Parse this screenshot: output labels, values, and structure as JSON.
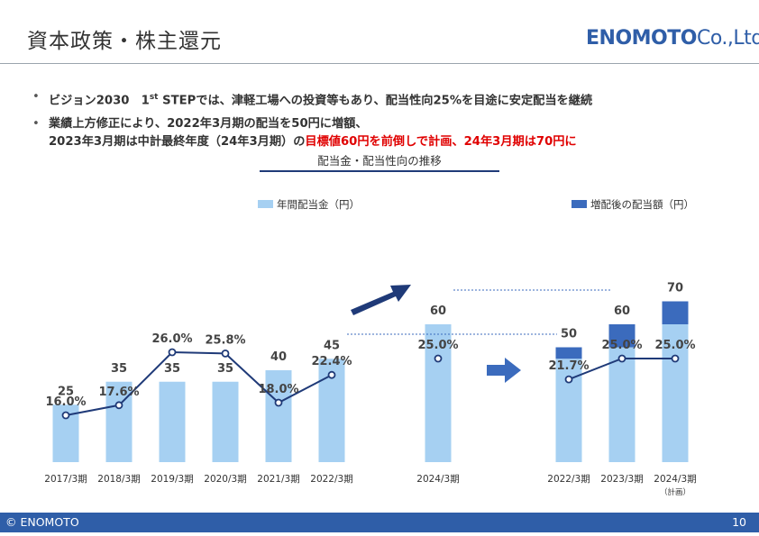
{
  "header": {
    "title": "資本政策・株主還元",
    "logo_main": "ENOMOTO",
    "logo_sub": "Co.,Ltd."
  },
  "bullets": {
    "b1_pre": "ビジョン2030　1",
    "b1_sup": "st",
    "b1_post": " STEPでは、津軽工場への投資等もあり、配当性向25%を目途に安定配当を継続",
    "b2_line1": "業績上方修正により、2022年3月期の配当を50円に増額、",
    "b2_line2_pre": "2023年3月期は中計最終年度（24年3月期）の",
    "b2_line2_red": "目標値60円を前倒しで計画、24年3月期は70円に"
  },
  "subtitle": "配当金・配当性向の推移",
  "footer": {
    "copyright": "© ENOMOTO",
    "page": "10"
  },
  "colors": {
    "bar_light": "#a6d0f2",
    "bar_dark": "#3b6bbd",
    "line": "#1f3a78",
    "arrow": "#1f3a78",
    "arrow_mid": "#3b6bbd"
  },
  "chart_data": [
    {
      "type": "bar",
      "legend": "年間配当金（円）",
      "categories": [
        "2017/3期",
        "2018/3期",
        "2019/3期",
        "2020/3期",
        "2021/3期",
        "2022/3期",
        "2024/3期"
      ],
      "values": [
        25,
        35,
        35,
        35,
        40,
        45,
        60
      ],
      "line_series": {
        "values": [
          16.0,
          17.6,
          26.0,
          25.8,
          18.0,
          22.4,
          25.0
        ],
        "labels": [
          "16.0%",
          "17.6%",
          "26.0%",
          "25.8%",
          "18.0%",
          "22.4%",
          "25.0%"
        ]
      }
    },
    {
      "type": "bar",
      "legend": "増配後の配当額（円）",
      "categories": [
        "2022/3期",
        "2023/3期",
        "2024/3期"
      ],
      "category_note": [
        "",
        "",
        "（計画）"
      ],
      "totals": [
        50,
        60,
        70
      ],
      "base_values": [
        45,
        50,
        60
      ],
      "increase_values": [
        5,
        10,
        10
      ],
      "line_series": {
        "values": [
          21.7,
          25.0,
          25.0
        ],
        "labels": [
          "21.7%",
          "25.0%",
          "25.0%"
        ]
      }
    }
  ]
}
